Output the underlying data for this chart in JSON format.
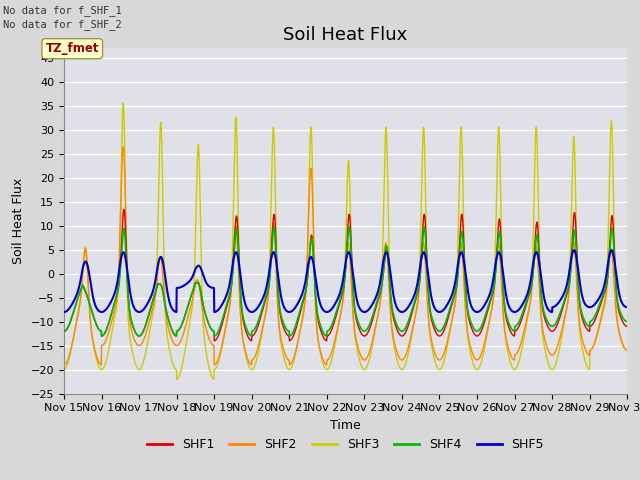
{
  "title": "Soil Heat Flux",
  "ylabel": "Soil Heat Flux",
  "xlabel": "Time",
  "ylim": [
    -25,
    47
  ],
  "yticks": [
    -25,
    -20,
    -15,
    -10,
    -5,
    0,
    5,
    10,
    15,
    20,
    25,
    30,
    35,
    40,
    45
  ],
  "colors": {
    "SHF1": "#dd0000",
    "SHF2": "#ff8800",
    "SHF3": "#cccc00",
    "SHF4": "#00bb00",
    "SHF5": "#0000cc"
  },
  "annotation_text": "No data for f_SHF_1\nNo data for f_SHF_2",
  "tz_label": "TZ_fmet",
  "background_color": "#d8d8d8",
  "plot_bg_color": "#e0e0e8",
  "grid_color": "#ffffff",
  "title_fontsize": 13,
  "axis_fontsize": 9,
  "tick_fontsize": 8,
  "legend_fontsize": 9
}
